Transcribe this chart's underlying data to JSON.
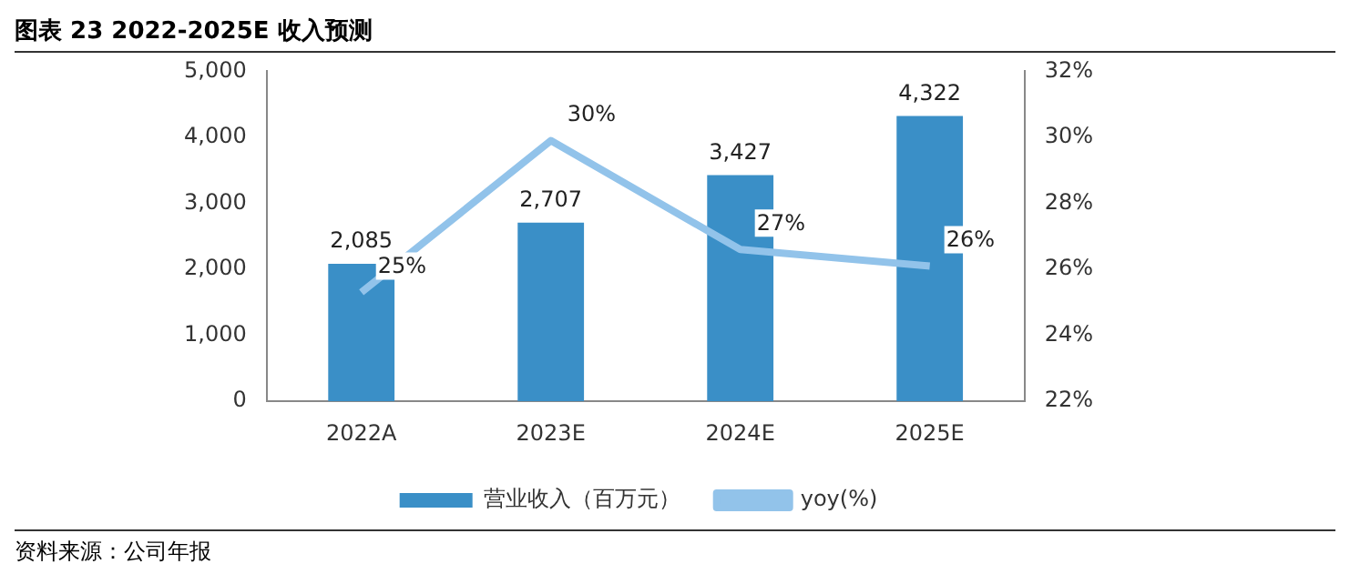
{
  "chart_data": {
    "type": "bar",
    "title": "图表 23 2022-2025E 收入预测",
    "categories": [
      "2022A",
      "2023E",
      "2024E",
      "2025E"
    ],
    "series": [
      {
        "name": "营业收入（百万元）",
        "color": "#3a8fc7",
        "values": [
          2085,
          2707,
          3427,
          4322
        ],
        "value_labels": [
          "2,085",
          "2,707",
          "3,427",
          "4,322"
        ]
      },
      {
        "name": "yoy(%)",
        "type": "line",
        "axis": "y2",
        "color": "#92c3ea",
        "values": [
          25.3,
          29.9,
          26.6,
          26.1
        ],
        "value_labels": [
          "25%",
          "30%",
          "27%",
          "26%"
        ]
      }
    ],
    "ylim": [
      0,
      5000
    ],
    "yticks": [
      0,
      {
        "value": 1000,
        "label": "1,000"
      },
      {
        "value": 2000,
        "label": "2,000"
      },
      {
        "value": 3000,
        "label": "3,000"
      },
      {
        "value": 4000,
        "label": "4,000"
      },
      {
        "value": 5000,
        "label": "5,000"
      }
    ],
    "y2lim": [
      22,
      32
    ],
    "y2ticks": [
      {
        "value": 22,
        "label": "22%"
      },
      {
        "value": 24,
        "label": "24%"
      },
      {
        "value": 26,
        "label": "26%"
      },
      {
        "value": 28,
        "label": "28%"
      },
      {
        "value": 30,
        "label": "30%"
      },
      {
        "value": 32,
        "label": "32%"
      }
    ],
    "legend": "bottom",
    "grid": false,
    "marker": "none",
    "annotations": [
      "资料来源：公司年报"
    ]
  }
}
